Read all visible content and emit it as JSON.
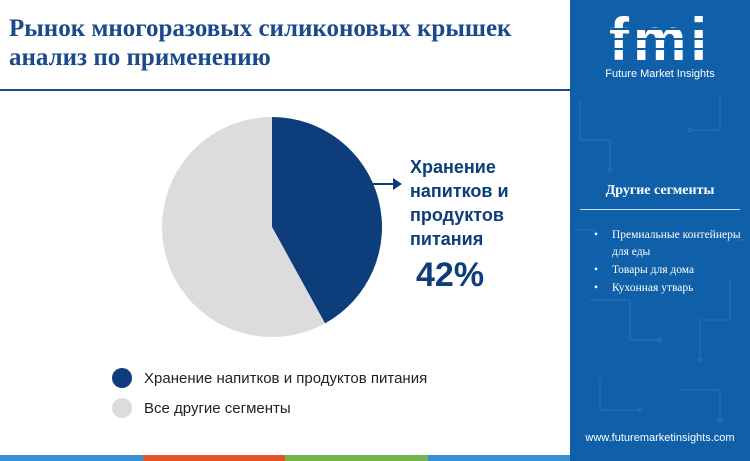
{
  "title": "Рынок многоразовых силиконовых крышек анализ по применению",
  "chart_data": {
    "type": "pie",
    "slices": [
      {
        "label": "Хранение напитков и продуктов питания",
        "value": 42,
        "color": "#0d3d7a"
      },
      {
        "label": "Все другие сегменты",
        "value": 58,
        "color": "#dcdcdc"
      }
    ],
    "callout": {
      "label": "Хранение напитков и продуктов питания",
      "value_text": "42%"
    }
  },
  "legend": [
    {
      "label": "Хранение напитков и продуктов питания",
      "color": "#0d3d7a"
    },
    {
      "label": "Все другие сегменты",
      "color": "#dcdcdc"
    }
  ],
  "sidebar": {
    "logo_text": "fmi",
    "brand": "Future Market Insights",
    "segments_title": "Другие сегменты",
    "segments": [
      "Премиальные контейнеры для еды",
      "Товары для дома",
      "Кухонная утварь"
    ],
    "bullet": "•",
    "url": "www.futuremarketinsights.com"
  },
  "bottom_bar_colors": [
    "#3a8fd0",
    "#e1532a",
    "#73b54a",
    "#3a8fd0"
  ]
}
